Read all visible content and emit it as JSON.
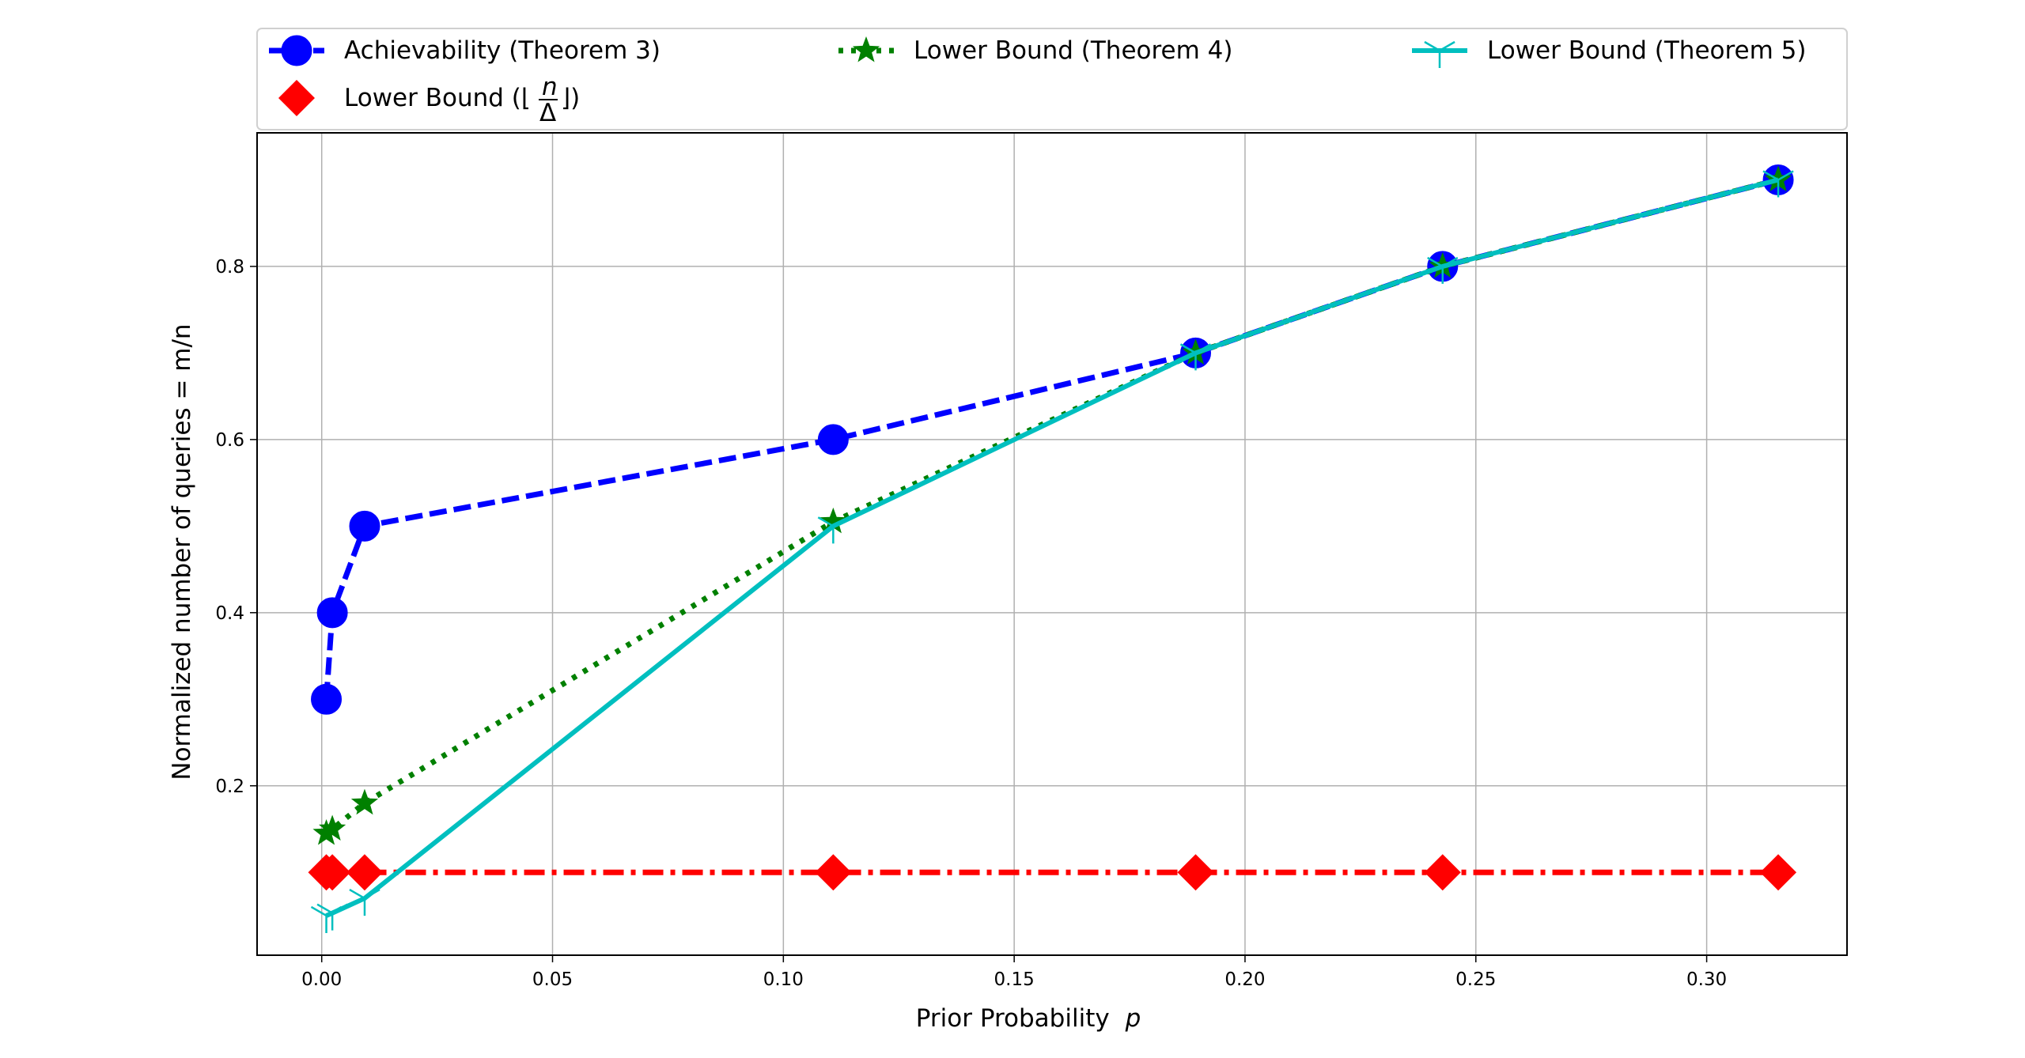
{
  "chart_data": {
    "type": "line",
    "xlabel": "Prior Probability",
    "xlabel_var": "p",
    "ylabel": "Normalized number of queries = m/n",
    "xlim": [
      -0.014,
      0.3304
    ],
    "ylim": [
      0.0043,
      0.9543
    ],
    "xticks": [
      0.0,
      0.05,
      0.1,
      0.15,
      0.2,
      0.25,
      0.3
    ],
    "xtick_labels": [
      "0.00",
      "0.05",
      "0.10",
      "0.15",
      "0.20",
      "0.25",
      "0.30"
    ],
    "yticks": [
      0.2,
      0.4,
      0.6,
      0.8
    ],
    "ytick_labels": [
      "0.2",
      "0.4",
      "0.6",
      "0.8"
    ],
    "grid": true,
    "legend_placement": "top, above plot, 3 columns",
    "series": [
      {
        "name": "Achievability (Theorem 3)",
        "color": "#0000ff",
        "line": "dashed",
        "marker": "circle",
        "x": [
          0.001,
          0.0023,
          0.0093,
          0.1108,
          0.1893,
          0.2428,
          0.3155
        ],
        "y": [
          0.3,
          0.4,
          0.5,
          0.6,
          0.7,
          0.8,
          0.9
        ]
      },
      {
        "name": "Lower Bound (Theorem 4)",
        "color": "#008000",
        "line": "dotted",
        "marker": "star",
        "x": [
          0.001,
          0.0023,
          0.0093,
          0.1108,
          0.1893,
          0.2428,
          0.3155
        ],
        "y": [
          0.145,
          0.15,
          0.18,
          0.505,
          0.7,
          0.8,
          0.9
        ]
      },
      {
        "name": "Lower Bound (Theorem 5)",
        "color": "#00bfbf",
        "line": "solid",
        "marker": "tri_down",
        "x": [
          0.001,
          0.0023,
          0.0093,
          0.1108,
          0.1893,
          0.2428,
          0.3155
        ],
        "y": [
          0.05,
          0.053,
          0.07,
          0.5,
          0.7,
          0.8,
          0.9
        ]
      },
      {
        "name": "Lower Bound (⌊n/Δ⌋)",
        "name_prefix": "Lower Bound (⌊",
        "name_num": "n",
        "name_den": "Δ",
        "name_suffix": "⌋)",
        "color": "#ff0000",
        "line": "dashdot",
        "marker": "diamond",
        "x": [
          0.001,
          0.0023,
          0.0093,
          0.1108,
          0.1893,
          0.2428,
          0.3155
        ],
        "y": [
          0.1,
          0.1,
          0.1,
          0.1,
          0.1,
          0.1,
          0.1
        ]
      }
    ]
  }
}
